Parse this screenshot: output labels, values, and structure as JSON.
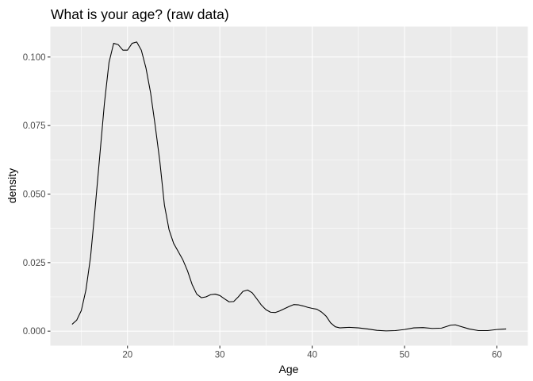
{
  "chart_data": {
    "type": "line",
    "title": "What is your age? (raw data)",
    "xlabel": "Age",
    "ylabel": "density",
    "xlim": [
      11.65,
      63.35
    ],
    "ylim": [
      -0.0053,
      0.1111
    ],
    "x_ticks": [
      20,
      30,
      40,
      50,
      60
    ],
    "x_tick_labels": [
      "20",
      "30",
      "40",
      "50",
      "60"
    ],
    "x_minor_ticks": [
      15,
      25,
      35,
      45,
      55
    ],
    "y_ticks": [
      0.0,
      0.025,
      0.05,
      0.075,
      0.1
    ],
    "y_tick_labels": [
      "0.000",
      "0.025",
      "0.050",
      "0.075",
      "0.100"
    ],
    "y_minor_ticks": [
      0.0125,
      0.0375,
      0.0625,
      0.0875
    ],
    "grid": true,
    "colors": {
      "panel_background": "#ebebeb",
      "grid": "#ffffff",
      "line": "#000000",
      "tick_label": "#4d4d4d",
      "tick_mark": "#333333"
    },
    "series": [
      {
        "x": [
          14.0,
          14.5,
          15.0,
          15.5,
          16.0,
          16.5,
          17.0,
          17.5,
          18.0,
          18.5,
          19.0,
          19.5,
          20.0,
          20.5,
          21.0,
          21.5,
          22.0,
          22.5,
          23.0,
          23.5,
          24.0,
          24.5,
          25.0,
          25.5,
          26.0,
          26.5,
          27.0,
          27.5,
          28.0,
          28.5,
          29.0,
          29.5,
          30.0,
          30.5,
          31.0,
          31.5,
          32.0,
          32.5,
          33.0,
          33.5,
          34.0,
          34.5,
          35.0,
          35.5,
          36.0,
          36.5,
          37.0,
          37.5,
          38.0,
          38.5,
          39.0,
          39.5,
          40.0,
          40.5,
          41.0,
          41.5,
          42.0,
          42.5,
          43.0,
          43.5,
          44.0,
          45.0,
          46.0,
          47.0,
          48.0,
          49.0,
          50.0,
          51.0,
          52.0,
          53.0,
          54.0,
          55.0,
          55.5,
          56.0,
          57.0,
          58.0,
          59.0,
          60.0,
          61.0
        ],
        "y": [
          0.0025,
          0.004,
          0.0075,
          0.015,
          0.027,
          0.045,
          0.064,
          0.083,
          0.098,
          0.105,
          0.1045,
          0.1025,
          0.1025,
          0.105,
          0.1055,
          0.1025,
          0.096,
          0.087,
          0.075,
          0.062,
          0.046,
          0.037,
          0.032,
          0.029,
          0.026,
          0.022,
          0.017,
          0.0135,
          0.0122,
          0.0125,
          0.0133,
          0.0135,
          0.013,
          0.0118,
          0.0107,
          0.0108,
          0.0125,
          0.0145,
          0.015,
          0.014,
          0.0118,
          0.0095,
          0.0078,
          0.0069,
          0.0068,
          0.0074,
          0.0082,
          0.009,
          0.0097,
          0.0096,
          0.0092,
          0.0087,
          0.0083,
          0.008,
          0.007,
          0.0055,
          0.003,
          0.0016,
          0.0012,
          0.0013,
          0.0014,
          0.0012,
          0.0008,
          0.0003,
          0.0001,
          0.0002,
          0.0006,
          0.0012,
          0.0013,
          0.001,
          0.0011,
          0.0022,
          0.0023,
          0.0018,
          0.0008,
          0.0002,
          0.0002,
          0.0006,
          0.0008
        ]
      }
    ]
  }
}
